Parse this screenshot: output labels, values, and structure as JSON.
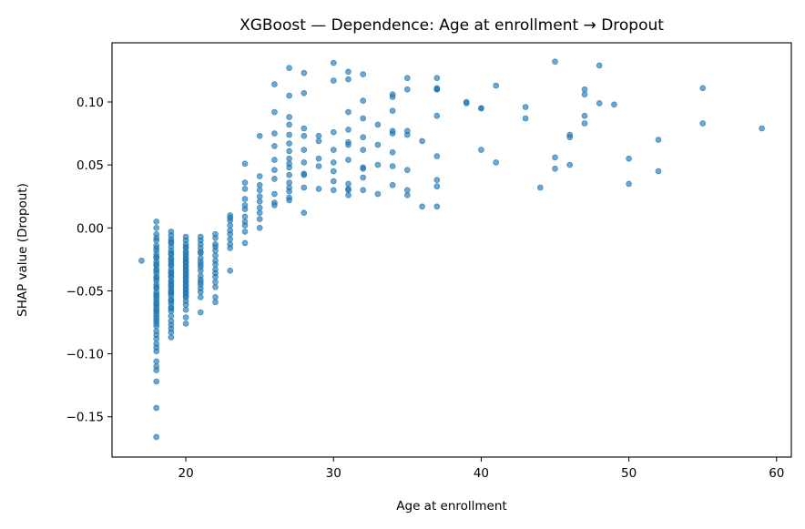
{
  "chart_data": {
    "type": "scatter",
    "title": "XGBoost — Dependence: Age at enrollment → Dropout",
    "xlabel": "Age at enrollment",
    "ylabel": "SHAP value (Dropout)",
    "xlim": [
      15,
      61
    ],
    "ylim": [
      -0.182,
      0.147
    ],
    "xticks": [
      20,
      30,
      40,
      50,
      60
    ],
    "yticks": [
      -0.15,
      -0.1,
      -0.05,
      0.0,
      0.05,
      0.1
    ],
    "xtick_labels": [
      "20",
      "30",
      "40",
      "50",
      "60"
    ],
    "ytick_labels": [
      "−0.15",
      "−0.10",
      "−0.05",
      "0.00",
      "0.05",
      "0.10"
    ],
    "grid": false,
    "point_color": "#1f77b4",
    "point_opacity": 0.65,
    "series": [
      {
        "x": [
          17,
          18,
          18,
          18,
          18,
          18,
          18,
          18,
          18,
          18,
          18,
          18,
          18,
          18,
          18,
          18,
          18,
          18,
          18,
          18,
          18,
          18,
          18,
          18,
          18,
          18,
          18,
          18,
          18,
          18,
          18,
          18,
          18,
          18,
          18,
          18,
          18,
          18,
          18,
          18,
          18,
          18,
          18,
          18,
          18,
          18,
          18,
          18,
          18,
          18,
          18,
          18,
          19,
          19,
          19,
          19,
          19,
          19,
          19,
          19,
          19,
          19,
          19,
          19,
          19,
          19,
          19,
          19,
          19,
          19,
          19,
          19,
          19,
          19,
          19,
          19,
          19,
          19,
          19,
          19,
          19,
          19,
          19,
          19,
          19,
          19,
          19,
          19,
          19,
          19,
          19,
          19,
          20,
          20,
          20,
          20,
          20,
          20,
          20,
          20,
          20,
          20,
          20,
          20,
          20,
          20,
          20,
          20,
          20,
          20,
          20,
          20,
          20,
          20,
          20,
          20,
          20,
          20,
          20,
          20,
          20,
          20,
          20,
          20,
          20,
          20,
          20,
          21,
          21,
          21,
          21,
          21,
          21,
          21,
          21,
          21,
          21,
          21,
          21,
          21,
          21,
          21,
          21,
          21,
          21,
          21,
          22,
          22,
          22,
          22,
          22,
          22,
          22,
          22,
          22,
          22,
          22,
          22,
          22,
          22,
          22,
          23,
          23,
          23,
          23,
          23,
          23,
          23,
          23,
          23,
          23,
          24,
          24,
          24,
          24,
          24,
          24,
          24,
          24,
          24,
          24,
          24,
          25,
          25,
          25,
          25,
          25,
          25,
          25,
          25,
          25,
          25,
          26,
          26,
          26,
          26,
          26,
          26,
          26,
          26,
          26,
          26,
          27,
          27,
          27,
          27,
          27,
          27,
          27,
          27,
          27,
          27,
          27,
          27,
          27,
          27,
          27,
          27,
          28,
          28,
          28,
          28,
          28,
          28,
          28,
          28,
          28,
          28,
          29,
          29,
          29,
          29,
          29,
          30,
          30,
          30,
          30,
          30,
          30,
          30,
          30,
          31,
          31,
          31,
          31,
          31,
          31,
          31,
          31,
          31,
          31,
          31,
          32,
          32,
          32,
          32,
          32,
          32,
          32,
          32,
          32,
          33,
          33,
          33,
          33,
          34,
          34,
          34,
          34,
          34,
          34,
          34,
          34,
          35,
          35,
          35,
          35,
          35,
          35,
          35,
          36,
          36,
          37,
          37,
          37,
          37,
          37,
          37,
          37,
          37,
          37,
          39,
          39,
          40,
          40,
          40,
          41,
          41,
          43,
          43,
          44,
          45,
          45,
          45,
          46,
          46,
          46,
          47,
          47,
          47,
          47,
          48,
          48,
          49,
          50,
          50,
          52,
          52,
          55,
          55,
          59
        ],
        "y": [
          -0.026,
          0.005,
          0.0,
          -0.005,
          -0.01,
          -0.014,
          -0.018,
          -0.021,
          -0.024,
          -0.027,
          -0.03,
          -0.033,
          -0.036,
          -0.039,
          -0.042,
          -0.045,
          -0.048,
          -0.051,
          -0.054,
          -0.056,
          -0.058,
          -0.061,
          -0.063,
          -0.066,
          -0.068,
          -0.07,
          -0.072,
          -0.074,
          -0.076,
          -0.078,
          -0.082,
          -0.085,
          -0.088,
          -0.092,
          -0.095,
          -0.098,
          -0.106,
          -0.11,
          -0.113,
          -0.122,
          -0.143,
          -0.166,
          -0.008,
          -0.016,
          -0.023,
          -0.029,
          -0.034,
          -0.04,
          -0.047,
          -0.053,
          -0.06,
          -0.065,
          -0.003,
          -0.006,
          -0.009,
          -0.012,
          -0.015,
          -0.018,
          -0.021,
          -0.024,
          -0.027,
          -0.03,
          -0.033,
          -0.036,
          -0.039,
          -0.042,
          -0.045,
          -0.048,
          -0.051,
          -0.054,
          -0.057,
          -0.06,
          -0.063,
          -0.066,
          -0.07,
          -0.074,
          -0.077,
          -0.08,
          -0.083,
          -0.087,
          -0.011,
          -0.02,
          -0.029,
          -0.038,
          -0.046,
          -0.052,
          -0.058,
          -0.064,
          -0.025,
          -0.043,
          -0.035,
          -0.05,
          -0.007,
          -0.01,
          -0.013,
          -0.016,
          -0.019,
          -0.022,
          -0.025,
          -0.028,
          -0.031,
          -0.034,
          -0.037,
          -0.04,
          -0.043,
          -0.046,
          -0.049,
          -0.052,
          -0.055,
          -0.058,
          -0.061,
          -0.065,
          -0.071,
          -0.076,
          -0.015,
          -0.024,
          -0.03,
          -0.036,
          -0.042,
          -0.048,
          -0.054,
          -0.033,
          -0.02,
          -0.045,
          -0.027,
          -0.039,
          -0.051,
          -0.007,
          -0.01,
          -0.013,
          -0.016,
          -0.02,
          -0.024,
          -0.027,
          -0.031,
          -0.034,
          -0.038,
          -0.041,
          -0.045,
          -0.048,
          -0.051,
          -0.055,
          -0.067,
          -0.019,
          -0.029,
          -0.043,
          -0.005,
          -0.008,
          -0.013,
          -0.018,
          -0.022,
          -0.026,
          -0.029,
          -0.033,
          -0.036,
          -0.039,
          -0.043,
          -0.047,
          -0.055,
          -0.059,
          -0.015,
          0.01,
          0.006,
          0.002,
          -0.002,
          -0.005,
          -0.009,
          -0.013,
          -0.016,
          -0.034,
          0.008,
          0.051,
          0.036,
          0.031,
          0.023,
          0.018,
          0.015,
          0.009,
          0.005,
          0.002,
          -0.003,
          -0.012,
          0.073,
          0.041,
          0.03,
          0.025,
          0.021,
          0.016,
          0.012,
          0.007,
          0.0,
          0.034,
          0.114,
          0.092,
          0.075,
          0.054,
          0.046,
          0.039,
          0.027,
          0.02,
          0.018,
          0.065,
          0.127,
          0.105,
          0.088,
          0.074,
          0.067,
          0.061,
          0.055,
          0.048,
          0.042,
          0.032,
          0.029,
          0.024,
          0.022,
          0.082,
          0.036,
          0.051,
          0.123,
          0.107,
          0.079,
          0.073,
          0.062,
          0.052,
          0.043,
          0.042,
          0.032,
          0.012,
          0.073,
          0.069,
          0.049,
          0.031,
          0.055,
          0.131,
          0.117,
          0.076,
          0.062,
          0.052,
          0.045,
          0.037,
          0.03,
          0.124,
          0.118,
          0.092,
          0.078,
          0.068,
          0.066,
          0.054,
          0.035,
          0.031,
          0.03,
          0.026,
          0.122,
          0.101,
          0.087,
          0.072,
          0.062,
          0.048,
          0.047,
          0.03,
          0.04,
          0.082,
          0.066,
          0.05,
          0.027,
          0.106,
          0.104,
          0.093,
          0.077,
          0.075,
          0.06,
          0.049,
          0.034,
          0.119,
          0.11,
          0.077,
          0.074,
          0.046,
          0.03,
          0.026,
          0.069,
          0.017,
          0.119,
          0.111,
          0.11,
          0.089,
          0.057,
          0.038,
          0.033,
          0.017,
          0.11,
          0.1,
          0.099,
          0.095,
          0.095,
          0.062,
          0.113,
          0.052,
          0.096,
          0.087,
          0.032,
          0.132,
          0.056,
          0.047,
          0.074,
          0.072,
          0.05,
          0.11,
          0.106,
          0.089,
          0.083,
          0.129,
          0.099,
          0.098,
          0.055,
          0.035,
          0.07,
          0.045,
          0.111,
          0.083,
          0.079
        ]
      }
    ]
  }
}
